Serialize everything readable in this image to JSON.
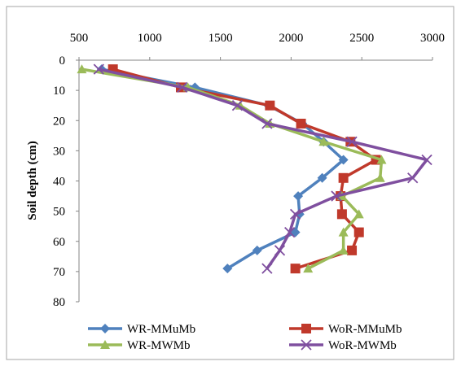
{
  "chart_data": {
    "type": "line",
    "title": "",
    "xlabel": "",
    "ylabel": "Soil depth (cm)",
    "x_axis_position": "top",
    "y_axis_inverted": true,
    "xlim": [
      500,
      3000
    ],
    "ylim": [
      0,
      80
    ],
    "x_ticks": [
      "500",
      "1000",
      "1500",
      "2000",
      "2500",
      "3000"
    ],
    "y_ticks": [
      "0",
      "10",
      "20",
      "30",
      "40",
      "50",
      "60",
      "70",
      "80"
    ],
    "grid": false,
    "legend_position": "bottom",
    "depths": [
      3,
      9,
      15,
      21,
      27,
      33,
      39,
      45,
      51,
      57,
      63,
      69
    ],
    "series": [
      {
        "name": "WR-MMuMb",
        "color": "#4F81BD",
        "marker": "diamond",
        "values": [
          660,
          1320,
          1840,
          2080,
          2230,
          2370,
          2220,
          2050,
          2060,
          2030,
          1760,
          1550
        ]
      },
      {
        "name": "WoR-MMuMb",
        "color": "#C0392B",
        "marker": "square",
        "values": [
          740,
          1220,
          1850,
          2070,
          2420,
          2600,
          2370,
          2350,
          2360,
          2480,
          2430,
          2030
        ]
      },
      {
        "name": "WR-MWMb",
        "color": "#9BBB59",
        "marker": "triangle",
        "values": [
          520,
          1270,
          1640,
          1850,
          2230,
          2640,
          2630,
          2360,
          2480,
          2370,
          2370,
          2120
        ]
      },
      {
        "name": "WoR-MWMb",
        "color": "#7F4F9F",
        "marker": "x",
        "values": [
          640,
          1230,
          1620,
          1830,
          2430,
          2960,
          2860,
          2320,
          2030,
          1990,
          1920,
          1830
        ]
      }
    ]
  }
}
